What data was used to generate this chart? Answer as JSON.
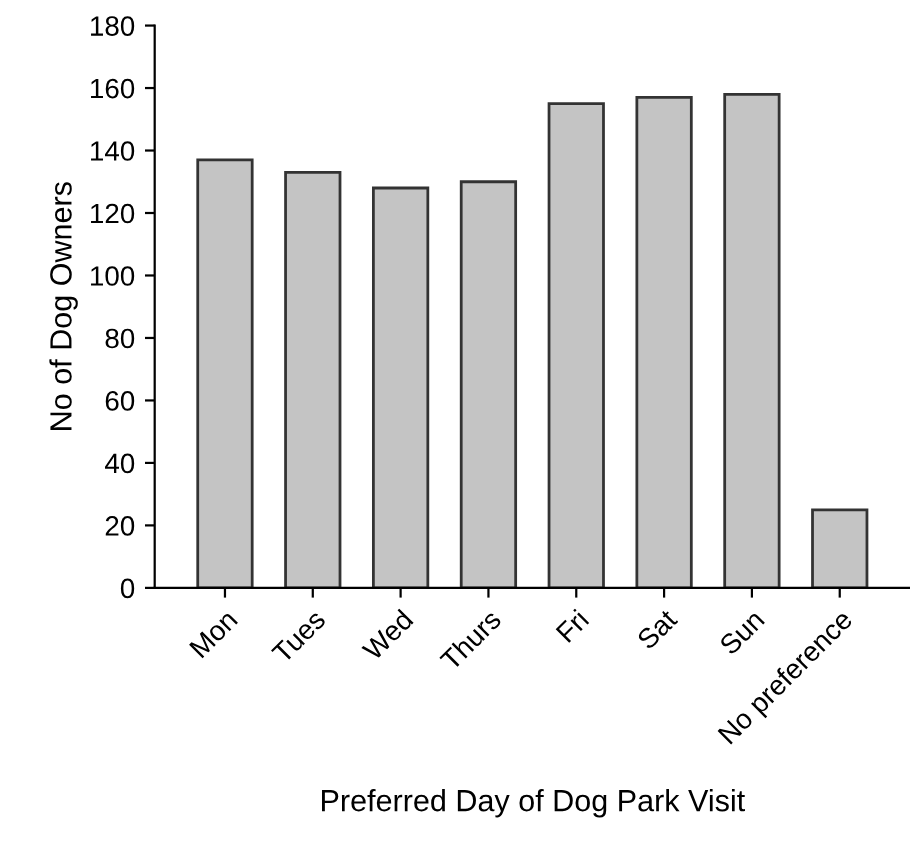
{
  "chart_data": {
    "type": "bar",
    "xlabel": "Preferred Day of Dog Park Visit",
    "ylabel": "No of Dog Owners",
    "categories": [
      "Mon",
      "Tues",
      "Wed",
      "Thurs",
      "Fri",
      "Sat",
      "Sun",
      "No preference"
    ],
    "values": [
      137,
      133,
      128,
      130,
      155,
      157,
      158,
      25
    ],
    "color": "#c4c4c4",
    "ylim": [
      0,
      180
    ],
    "yticks": [
      0,
      20,
      40,
      60,
      80,
      100,
      120,
      140,
      160,
      180
    ],
    "grid": false,
    "legend": false
  }
}
